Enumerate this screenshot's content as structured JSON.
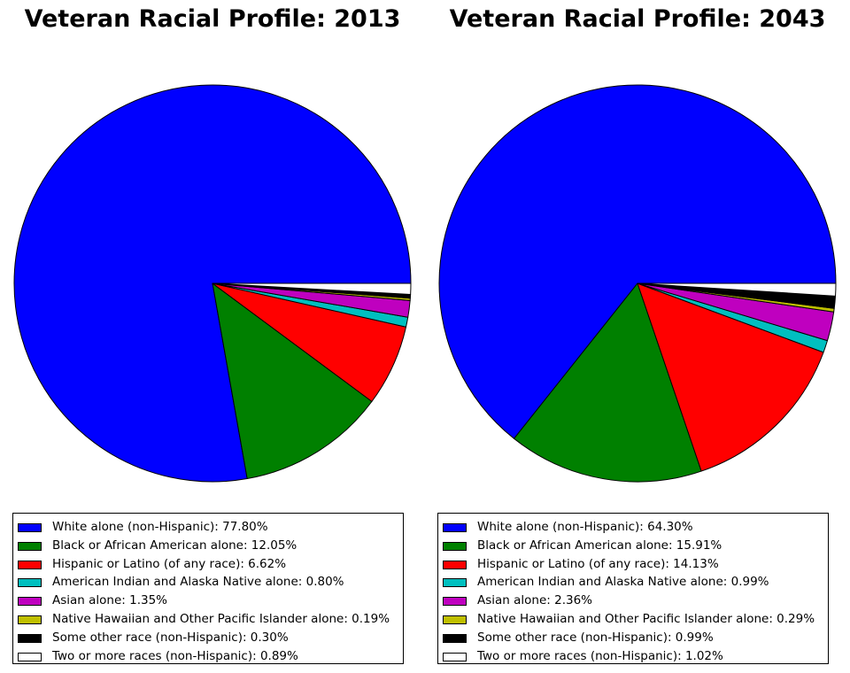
{
  "chart_data": [
    {
      "type": "pie",
      "title": "Veteran Racial Profile: 2013",
      "slices": [
        {
          "label": "White alone (non-Hispanic): 77.80%",
          "value": 77.8,
          "color": "#0000ff"
        },
        {
          "label": "Black or African American alone: 12.05%",
          "value": 12.05,
          "color": "#008000"
        },
        {
          "label": "Hispanic or Latino (of any race): 6.62%",
          "value": 6.62,
          "color": "#ff0000"
        },
        {
          "label": "American Indian and Alaska Native alone: 0.80%",
          "value": 0.8,
          "color": "#00bfbf"
        },
        {
          "label": "Asian alone: 1.35%",
          "value": 1.35,
          "color": "#bf00bf"
        },
        {
          "label": "Native Hawaiian and Other Pacific Islander alone: 0.19%",
          "value": 0.19,
          "color": "#bfbf00"
        },
        {
          "label": "Some other race (non-Hispanic): 0.30%",
          "value": 0.3,
          "color": "#000000"
        },
        {
          "label": "Two or more races (non-Hispanic): 0.89%",
          "value": 0.89,
          "color": "#ffffff"
        }
      ],
      "start_angle_deg": 0,
      "direction": "counterclockwise",
      "legend_placement": "bottom"
    },
    {
      "type": "pie",
      "title": "Veteran Racial Profile: 2043",
      "slices": [
        {
          "label": "White alone (non-Hispanic): 64.30%",
          "value": 64.3,
          "color": "#0000ff"
        },
        {
          "label": "Black or African American alone: 15.91%",
          "value": 15.91,
          "color": "#008000"
        },
        {
          "label": "Hispanic or Latino (of any race): 14.13%",
          "value": 14.13,
          "color": "#ff0000"
        },
        {
          "label": "American Indian and Alaska Native alone: 0.99%",
          "value": 0.99,
          "color": "#00bfbf"
        },
        {
          "label": "Asian alone: 2.36%",
          "value": 2.36,
          "color": "#bf00bf"
        },
        {
          "label": "Native Hawaiian and Other Pacific Islander alone: 0.29%",
          "value": 0.29,
          "color": "#bfbf00"
        },
        {
          "label": "Some other race (non-Hispanic): 0.99%",
          "value": 0.99,
          "color": "#000000"
        },
        {
          "label": "Two or more races (non-Hispanic): 1.02%",
          "value": 1.02,
          "color": "#ffffff"
        }
      ],
      "start_angle_deg": 0,
      "direction": "counterclockwise",
      "legend_placement": "bottom"
    }
  ]
}
